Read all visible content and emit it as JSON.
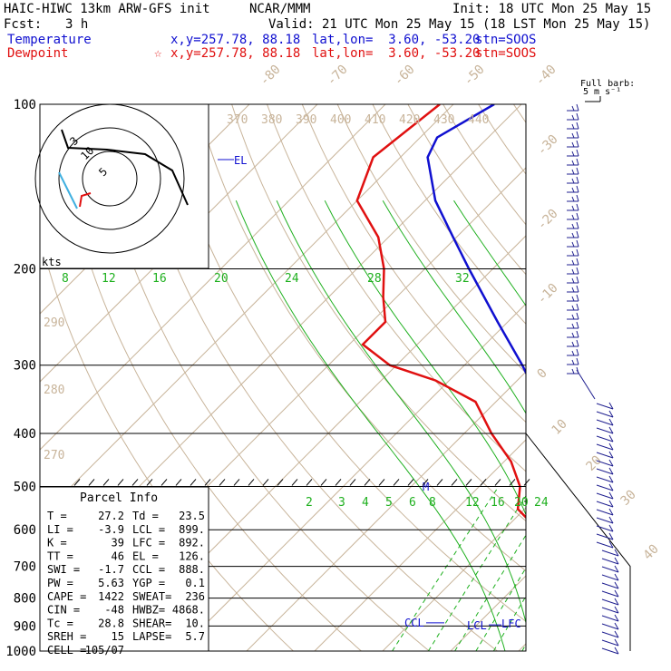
{
  "header": {
    "model": "HAIC-HIWC 13km ARW-GFS init",
    "org": "NCAR/MMM",
    "init": "Init: 18 UTC Mon 25 May 15",
    "fcst_label": "Fcst:",
    "fcst_value": "3 h",
    "valid": "Valid: 21 UTC Mon 25 May 15 (18 LST Mon 25 May 15)",
    "temp_label": "Temperature",
    "temp_point": "x,y=257.78, 88.18",
    "temp_latlon": "lat,lon=  3.60, -53.20",
    "temp_stn": "stn=SOOS",
    "dew_label": "Dewpoint",
    "dew_star": "☆",
    "dew_point": "x,y=257.78, 88.18",
    "dew_latlon": "lat,lon=  3.60, -53.20",
    "dew_stn": "stn=SOOS"
  },
  "colors": {
    "temperature": "#1010d0",
    "dewpoint": "#e01010",
    "isotherm": "#c8b49a",
    "mixing_ratio": "#1fb01f",
    "barb": "#202090",
    "hodo_red": "#e01010",
    "hodo_cyan": "#40b0e0"
  },
  "chart_data": {
    "type": "skew-t",
    "pressure_ticks": [
      100,
      200,
      300,
      400,
      500,
      600,
      700,
      800,
      900,
      1000
    ],
    "isotherm_labels": [
      "-80",
      "-70",
      "-60",
      "-50",
      "-40",
      "-30",
      "-20",
      "-10",
      "0",
      "10",
      "20",
      "30",
      "40"
    ],
    "theta_labels": [
      "370",
      "380",
      "390",
      "400",
      "410",
      "420",
      "430",
      "440"
    ],
    "theta_left_labels": [
      "290",
      "280",
      "270"
    ],
    "mixing_upper_labels": [
      "8",
      "12",
      "16",
      "20",
      "24",
      "28",
      "32"
    ],
    "mixing_lower_labels": [
      "2",
      "3",
      "4",
      "5",
      "6",
      "8",
      "12",
      "16",
      "20",
      "24"
    ],
    "temperature": {
      "name": "Temperature",
      "points": [
        [
          1000,
          27.2
        ],
        [
          975,
          25.0
        ],
        [
          950,
          23.0
        ],
        [
          925,
          21.8
        ],
        [
          900,
          20.5
        ],
        [
          850,
          17.5
        ],
        [
          800,
          14.2
        ],
        [
          750,
          11.0
        ],
        [
          700,
          8.0
        ],
        [
          650,
          4.8
        ],
        [
          600,
          1.3
        ],
        [
          550,
          -2.5
        ],
        [
          500,
          -6.5
        ],
        [
          450,
          -11.0
        ],
        [
          400,
          -16.5
        ],
        [
          350,
          -23.5
        ],
        [
          300,
          -31.5
        ],
        [
          250,
          -41.5
        ],
        [
          200,
          -53.5
        ],
        [
          175,
          -60.5
        ],
        [
          150,
          -68.5
        ],
        [
          125,
          -76.0
        ],
        [
          115,
          -77.5
        ],
        [
          100,
          -74.0
        ]
      ]
    },
    "dewpoint": {
      "name": "Dewpoint",
      "points": [
        [
          1000,
          23.5
        ],
        [
          975,
          22.5
        ],
        [
          950,
          21.5
        ],
        [
          925,
          20.0
        ],
        [
          900,
          18.5
        ],
        [
          850,
          15.0
        ],
        [
          800,
          11.8
        ],
        [
          750,
          8.5
        ],
        [
          700,
          5.0
        ],
        [
          650,
          0.0
        ],
        [
          600,
          -5.0
        ],
        [
          550,
          -11.0
        ],
        [
          500,
          -14.0
        ],
        [
          450,
          -19.0
        ],
        [
          400,
          -26.0
        ],
        [
          350,
          -33.0
        ],
        [
          320,
          -42.0
        ],
        [
          300,
          -51.0
        ],
        [
          275,
          -58.0
        ],
        [
          250,
          -58.0
        ],
        [
          225,
          -62.0
        ],
        [
          200,
          -66.0
        ],
        [
          175,
          -71.5
        ],
        [
          150,
          -80.0
        ],
        [
          125,
          -84.0
        ],
        [
          100,
          -82.0
        ]
      ]
    },
    "levels": {
      "lcl_pressure": 899,
      "lfc_pressure": 892,
      "ccl_pressure": 888,
      "el_pressure": 126
    },
    "level_labels": {
      "ccl": "CCL",
      "lcl": "LCL",
      "lfc": "LFC",
      "el": "EL",
      "m": "M"
    },
    "hodograph": {
      "kts_label": "kts",
      "ring_labels": [
        "3",
        "10",
        "5"
      ]
    },
    "barb_legend": [
      "Full barb:",
      "5 m s⁻¹"
    ],
    "parcel_info": {
      "title": "Parcel Info",
      "rows": [
        [
          "T  =",
          "27.2",
          "Td  =",
          "23.5"
        ],
        [
          "LI  =",
          "-3.9",
          "LCL =",
          "899."
        ],
        [
          "K  =",
          "39",
          "LFC =",
          "892."
        ],
        [
          "TT  =",
          "46",
          "EL  =",
          "126."
        ],
        [
          "SWI =",
          "-1.7",
          "CCL =",
          "888."
        ],
        [
          "PW  =",
          "5.63",
          "YGP =",
          "0.1"
        ],
        [
          "CAPE =",
          "1422",
          "SWEAT=",
          "236"
        ],
        [
          "CIN =",
          "-48",
          "HWBZ=",
          "4868."
        ],
        [
          "Tc  =",
          "28.8",
          "SHEAR=",
          "10."
        ],
        [
          "SREH =",
          "15",
          "LAPSE=",
          "5.7"
        ],
        [
          "CELL =",
          "105/07",
          "",
          ""
        ]
      ]
    }
  }
}
